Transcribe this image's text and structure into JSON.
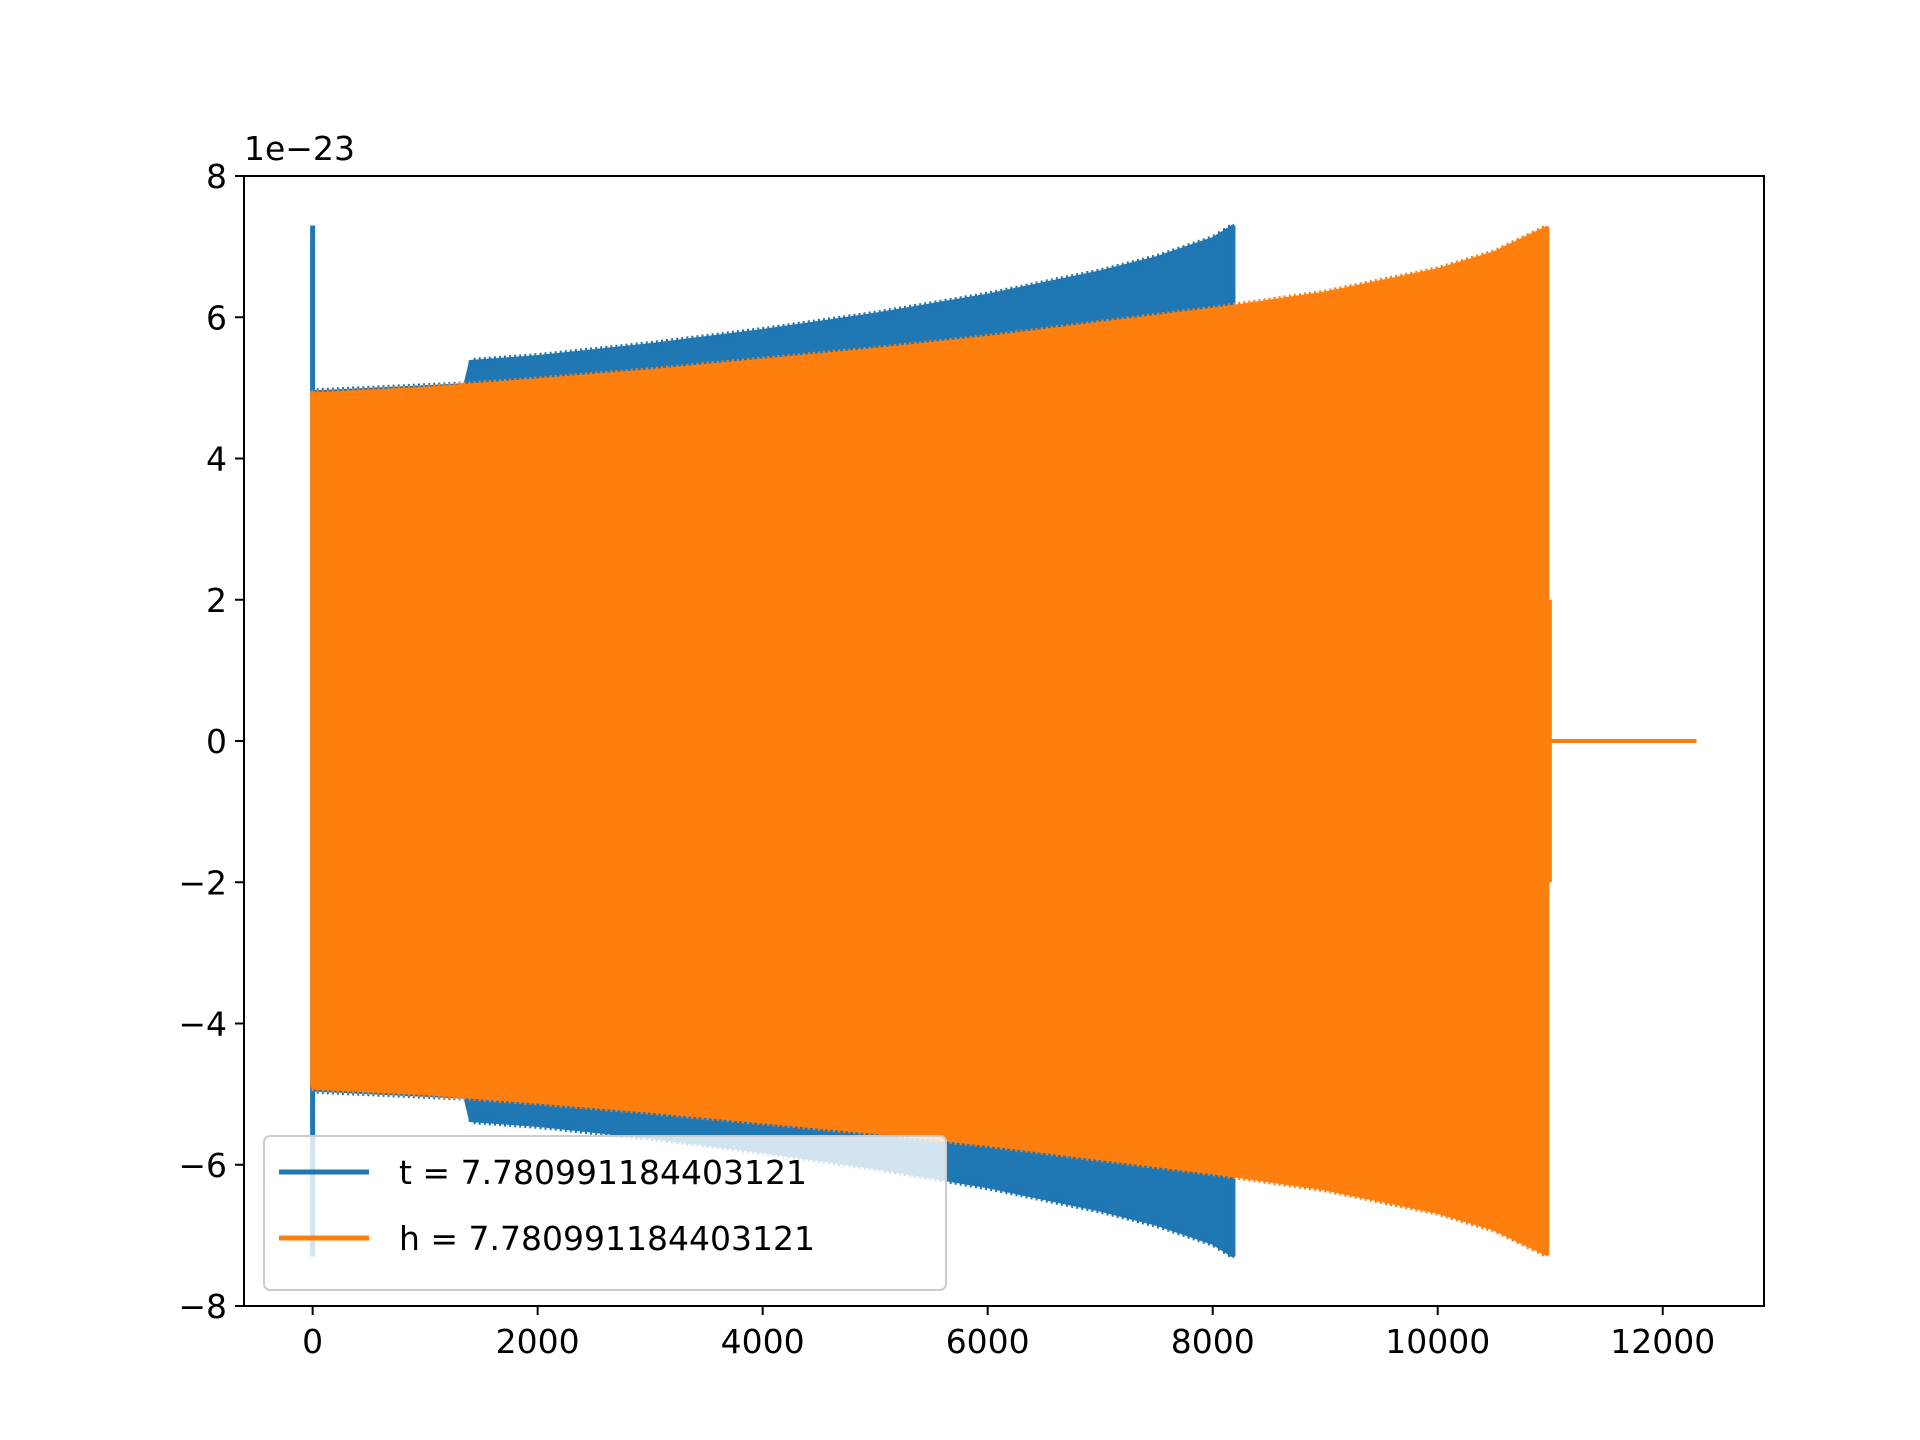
{
  "chart_data": {
    "type": "line",
    "title": "",
    "xlabel": "",
    "ylabel": "",
    "y_offset_text": "1e−23",
    "xlim": [
      -610,
      12900
    ],
    "ylim": [
      -8,
      8
    ],
    "x_ticks": [
      0,
      2000,
      4000,
      6000,
      8000,
      10000,
      12000
    ],
    "x_tick_labels": [
      "0",
      "2000",
      "4000",
      "6000",
      "8000",
      "10000",
      "12000"
    ],
    "y_ticks": [
      -8,
      -6,
      -4,
      -2,
      0,
      2,
      4,
      6,
      8
    ],
    "y_tick_labels": [
      "−8",
      "−6",
      "−4",
      "−2",
      "0",
      "2",
      "4",
      "6",
      "8"
    ],
    "grid": false,
    "legend_position": "lower-left",
    "series": [
      {
        "name": "t = 7.780991184403121",
        "color": "#1f77b4",
        "description_note": "",
        "start_spike": {
          "x": 0,
          "max": 7.3,
          "min": -7.3
        },
        "envelope": {
          "x": [
            0,
            1350,
            1400,
            2000,
            3000,
            4000,
            5000,
            6000,
            7000,
            7500,
            8000,
            8180
          ],
          "upper": [
            4.95,
            5.05,
            5.38,
            5.45,
            5.62,
            5.82,
            6.05,
            6.32,
            6.65,
            6.85,
            7.12,
            7.3
          ],
          "lower": [
            -4.95,
            -5.05,
            -5.38,
            -5.45,
            -5.62,
            -5.82,
            -6.05,
            -6.32,
            -6.65,
            -6.85,
            -7.12,
            -7.3
          ]
        },
        "end_x": 8180
      },
      {
        "name": "h = 7.780991184403121",
        "color": "#ff7f0e",
        "start_spike": {
          "x": 0,
          "max": 4.95,
          "min": -4.9
        },
        "envelope": {
          "x": [
            0,
            1000,
            2000,
            3000,
            4000,
            5000,
            6000,
            7000,
            8000,
            9000,
            10000,
            10500,
            10970
          ],
          "upper": [
            4.92,
            5.0,
            5.12,
            5.25,
            5.4,
            5.55,
            5.72,
            5.92,
            6.12,
            6.35,
            6.68,
            6.92,
            7.28
          ],
          "lower": [
            -4.92,
            -5.0,
            -5.12,
            -5.25,
            -5.4,
            -5.55,
            -5.72,
            -5.92,
            -6.12,
            -6.35,
            -6.68,
            -6.92,
            -7.28
          ]
        },
        "end_x": 10970,
        "tail": {
          "x": [
            10970,
            12300
          ],
          "y": [
            0,
            0
          ]
        }
      }
    ]
  }
}
